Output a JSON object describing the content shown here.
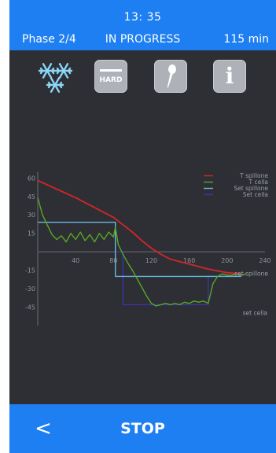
{
  "header": {
    "time": "13: 35",
    "phase": "Phase 2/4",
    "status": "IN PROGRESS",
    "duration": "115 min"
  },
  "toolbar": {
    "mode_icon": "snowflake-icon",
    "hard_label": "HARD",
    "probe_icon": "probe-icon",
    "info_label": "i"
  },
  "colors": {
    "header_bg": "#1e7ff2",
    "background": "#2d2f35",
    "button_bg": "#aeb2b8",
    "t_spillone": "#d4262a",
    "t_cella": "#5aa626",
    "set_spillone": "#6ab8dc",
    "set_cella": "#3c33a8"
  },
  "chart_data": {
    "type": "line",
    "x_ticks": [
      40,
      80,
      120,
      160,
      200,
      240
    ],
    "y_ticks": [
      60,
      45,
      30,
      15,
      -15,
      -30,
      -45
    ],
    "xlim": [
      0,
      240
    ],
    "ylim": [
      -60,
      65
    ],
    "grid": false,
    "legend_position": "top-right",
    "legend": [
      "T spillone",
      "T cella",
      "Set spillone",
      "Set cella"
    ],
    "annotations": [
      "set spillone",
      "set cella"
    ],
    "series": [
      {
        "name": "T spillone",
        "color": "#d4262a",
        "x": [
          0,
          20,
          40,
          60,
          80,
          90,
          100,
          110,
          120,
          130,
          140,
          160,
          180,
          200,
          215
        ],
        "y": [
          58,
          51,
          44,
          36,
          28,
          22,
          16,
          9,
          3,
          -2,
          -6,
          -10,
          -14,
          -17,
          -18
        ]
      },
      {
        "name": "T cella",
        "color": "#5aa626",
        "x": [
          0,
          5,
          10,
          15,
          20,
          25,
          30,
          35,
          40,
          45,
          50,
          55,
          60,
          65,
          70,
          75,
          80,
          82,
          85,
          90,
          95,
          100,
          105,
          110,
          115,
          120,
          125,
          130,
          135,
          140,
          145,
          150,
          155,
          160,
          165,
          170,
          175,
          180,
          185,
          190,
          195,
          200,
          205,
          210,
          215,
          220
        ],
        "y": [
          44,
          30,
          22,
          14,
          10,
          13,
          8,
          15,
          10,
          16,
          9,
          14,
          8,
          15,
          10,
          16,
          12,
          20,
          6,
          -2,
          -9,
          -15,
          -22,
          -29,
          -36,
          -42,
          -44,
          -43,
          -42,
          -43,
          -42,
          -43,
          -41,
          -42,
          -40,
          -41,
          -40,
          -42,
          -26,
          -20,
          -18,
          -19,
          -19,
          -18,
          -19,
          -18
        ]
      },
      {
        "name": "Set spillone",
        "color": "#6ab8dc",
        "x": [
          0,
          82,
          82,
          215
        ],
        "y": [
          24,
          24,
          -20,
          -20
        ]
      },
      {
        "name": "Set cella",
        "color": "#3c33a8",
        "x": [
          82,
          82,
          90,
          90,
          180,
          180,
          185
        ],
        "y": [
          24,
          0,
          0,
          -43,
          -43,
          -20,
          -20
        ]
      }
    ]
  },
  "footer": {
    "back_label": "<",
    "stop_label": "STOP"
  }
}
